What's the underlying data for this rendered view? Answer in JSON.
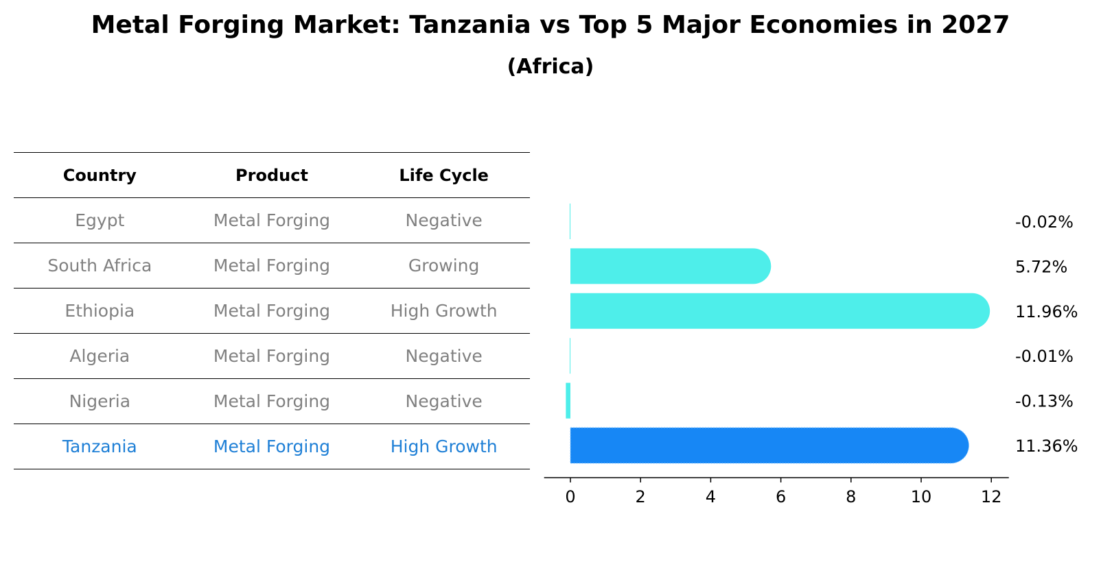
{
  "title": "Metal Forging Market: Tanzania vs Top 5 Major Economies in 2027",
  "subtitle": "(Africa)",
  "table": {
    "headers": [
      "Country",
      "Product",
      "Life Cycle"
    ],
    "rows": [
      {
        "country": "Egypt",
        "product": "Metal Forging",
        "life_cycle": "Negative"
      },
      {
        "country": "South Africa",
        "product": "Metal Forging",
        "life_cycle": "Growing"
      },
      {
        "country": "Ethiopia",
        "product": "Metal Forging",
        "life_cycle": "High Growth"
      },
      {
        "country": "Algeria",
        "product": "Metal Forging",
        "life_cycle": "Negative"
      },
      {
        "country": "Nigeria",
        "product": "Metal Forging",
        "life_cycle": "Negative"
      },
      {
        "country": "Tanzania",
        "product": "Metal Forging",
        "life_cycle": "High Growth"
      }
    ]
  },
  "colors": {
    "bar": "#4eeeea",
    "highlight": "#1787f5",
    "highlight_text": "#1e7fd6",
    "muted_text": "#808080"
  },
  "chart_data": {
    "type": "bar",
    "orientation": "horizontal",
    "categories": [
      "Egypt",
      "South Africa",
      "Ethiopia",
      "Algeria",
      "Nigeria",
      "Tanzania"
    ],
    "values": [
      -0.02,
      5.72,
      11.96,
      -0.01,
      -0.13,
      11.36
    ],
    "labels": [
      "-0.02%",
      "5.72%",
      "11.96%",
      "-0.01%",
      "-0.13%",
      "11.36%"
    ],
    "highlight": "Tanzania",
    "xlim": [
      -0.75,
      12.5
    ],
    "xticks": [
      0,
      2,
      4,
      6,
      8,
      10,
      12
    ],
    "tick_labels": [
      "0",
      "2",
      "4",
      "6",
      "8",
      "10",
      "12"
    ],
    "xlabel": "",
    "ylabel": "",
    "grid": false
  }
}
